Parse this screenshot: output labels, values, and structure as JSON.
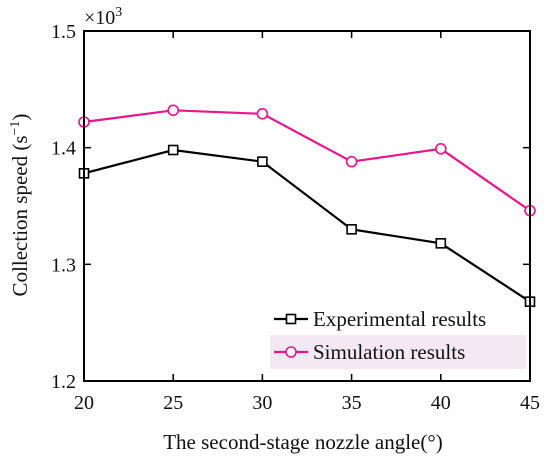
{
  "chart_data": {
    "type": "line",
    "title": "",
    "xlabel": "The second-stage nozzle angle(°)",
    "ylabel": "Collection speed (s",
    "ylabel_sup": "−1",
    "ylabel_close": ")",
    "y_multiplier": "×10",
    "y_multiplier_exp": "3",
    "x": [
      20,
      25,
      30,
      35,
      40,
      45
    ],
    "x_ticks": [
      "20",
      "25",
      "30",
      "35",
      "40",
      "45"
    ],
    "y_ticks": [
      1.2,
      1.3,
      1.4,
      1.5
    ],
    "y_tick_labels": [
      "1.2",
      "1.3",
      "1.4",
      "1.5"
    ],
    "xlim": [
      20,
      45
    ],
    "ylim": [
      1.2,
      1.5
    ],
    "grid": false,
    "legend_position": "bottom-right",
    "series": [
      {
        "name": "Experimental results",
        "values": [
          1.378,
          1.398,
          1.388,
          1.33,
          1.318,
          1.268
        ],
        "color": "#000000",
        "marker": "square"
      },
      {
        "name": "Simulation results",
        "values": [
          1.422,
          1.432,
          1.429,
          1.388,
          1.399,
          1.346
        ],
        "color": "#e8158b",
        "marker": "circle"
      }
    ]
  }
}
